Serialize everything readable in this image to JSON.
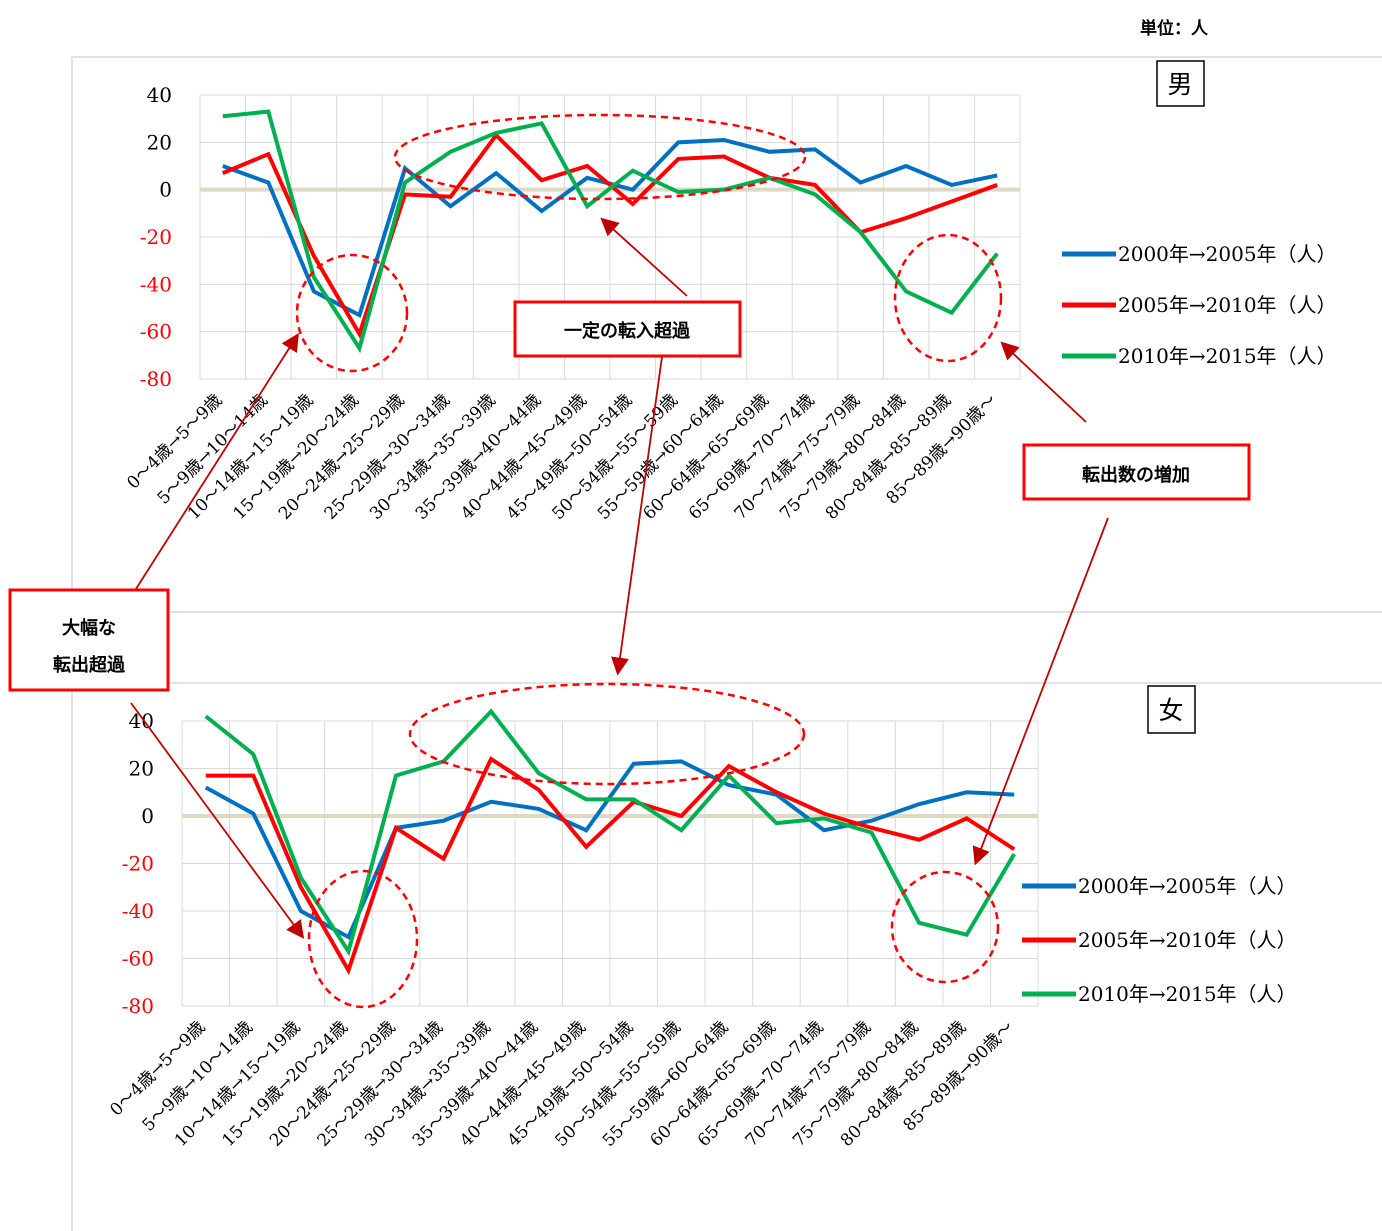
{
  "unit_label": "単位：人",
  "callouts": {
    "constant_inflow": "一定の転入超過",
    "outflow_increase": "転出数の増加",
    "large_outflow_line1": "大幅な",
    "large_outflow_line2": "転出超過"
  },
  "colors": {
    "series_2000_2005": "#0070c0",
    "series_2005_2010": "#ff0000",
    "series_2010_2015": "#00b050",
    "zero_line": "#ddd9c4",
    "negative_tick": "#ff0000",
    "arrow": "#c00000",
    "callout_border": "#ff0000"
  },
  "chart_data": [
    {
      "type": "line",
      "title": "男",
      "categories": [
        "0～4歳→5～9歳",
        "5～9歳→10～14歳",
        "10～14歳→15～19歳",
        "15～19歳→20～24歳",
        "20～24歳→25～29歳",
        "25～29歳→30～34歳",
        "30～34歳→35～39歳",
        "35～39歳→40～44歳",
        "40～44歳→45～49歳",
        "45～49歳→50～54歳",
        "50～54歳→55～59歳",
        "55～59歳→60～64歳",
        "60～64歳→65～69歳",
        "65～69歳→70～74歳",
        "70～74歳→75～79歳",
        "75～79歳→80～84歳",
        "80～84歳→85～89歳",
        "85～89歳→90歳～"
      ],
      "yticks": [
        "40",
        "20",
        "0",
        "-20",
        "-40",
        "-60",
        "-80"
      ],
      "ylim": [
        -80,
        40
      ],
      "grid": true,
      "legend_position": "right",
      "series": [
        {
          "name": "2000年→2005年（人）",
          "values": [
            10,
            3,
            -43,
            -53,
            9,
            -7,
            7,
            -9,
            5,
            0,
            20,
            21,
            16,
            17,
            3,
            10,
            2,
            6
          ]
        },
        {
          "name": "2005年→2010年（人）",
          "values": [
            7,
            15,
            -28,
            -61,
            -2,
            -3,
            23,
            4,
            10,
            -6,
            13,
            14,
            5,
            2,
            -18,
            -12,
            -5,
            2
          ]
        },
        {
          "name": "2010年→2015年（人）",
          "values": [
            31,
            33,
            -37,
            -67,
            3,
            16,
            24,
            28,
            -7,
            8,
            -1,
            0,
            5,
            -2,
            -18,
            -43,
            -52,
            -27
          ]
        }
      ]
    },
    {
      "type": "line",
      "title": "女",
      "categories": [
        "0～4歳→5～9歳",
        "5～9歳→10～14歳",
        "10～14歳→15～19歳",
        "15～19歳→20～24歳",
        "20～24歳→25～29歳",
        "25～29歳→30～34歳",
        "30～34歳→35～39歳",
        "35～39歳→40～44歳",
        "40～44歳→45～49歳",
        "45～49歳→50～54歳",
        "50～54歳→55～59歳",
        "55～59歳→60～64歳",
        "60～64歳→65～69歳",
        "65～69歳→70～74歳",
        "70～74歳→75～79歳",
        "75～79歳→80～84歳",
        "80～84歳→85～89歳",
        "85～89歳→90歳～"
      ],
      "yticks": [
        "40",
        "20",
        "0",
        "-20",
        "-40",
        "-60",
        "-80"
      ],
      "ylim": [
        -80,
        40
      ],
      "grid": true,
      "legend_position": "right",
      "series": [
        {
          "name": "2000年→2005年（人）",
          "values": [
            12,
            1,
            -40,
            -51,
            -5,
            -2,
            6,
            3,
            -6,
            22,
            23,
            13,
            9,
            -6,
            -2,
            5,
            10,
            9
          ]
        },
        {
          "name": "2005年→2010年（人）",
          "values": [
            17,
            17,
            -30,
            -65,
            -5,
            -18,
            24,
            11,
            -13,
            6,
            0,
            21,
            10,
            1,
            -5,
            -10,
            -1,
            -14
          ]
        },
        {
          "name": "2010年→2015年（人）",
          "values": [
            42,
            26,
            -26,
            -57,
            17,
            23,
            44,
            18,
            7,
            7,
            -6,
            17,
            -3,
            -1,
            -7,
            -45,
            -50,
            -16
          ]
        }
      ]
    }
  ]
}
